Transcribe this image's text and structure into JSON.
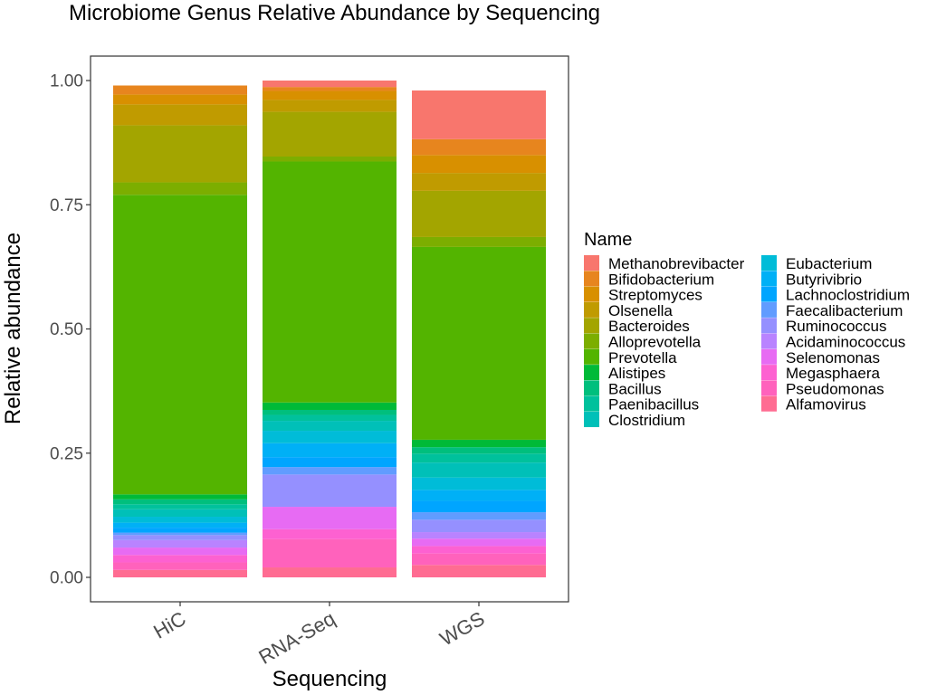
{
  "chart_data": {
    "type": "bar",
    "stacked": true,
    "title": "Microbiome Genus Relative Abundance by Sequencing",
    "xlabel": "Sequencing",
    "ylabel": "Relative abundance",
    "categories": [
      "HiC",
      "RNA-Seq",
      "WGS"
    ],
    "ylim": [
      0,
      1
    ],
    "yticks": [
      "0.00",
      "0.25",
      "0.50",
      "0.75",
      "1.00"
    ],
    "yticks_values": [
      0,
      0.25,
      0.5,
      0.75,
      1
    ],
    "grid": false,
    "legend": {
      "title": "Name",
      "position": "right",
      "columns": 2
    },
    "series": [
      {
        "name": "Methanobrevibacter",
        "color": "#F8766D",
        "values": [
          0.0,
          0.013,
          0.098
        ]
      },
      {
        "name": "Bifidobacterium",
        "color": "#E7851E",
        "values": [
          0.018,
          0.008,
          0.032
        ]
      },
      {
        "name": "Streptomyces",
        "color": "#D89000",
        "values": [
          0.02,
          0.018,
          0.036
        ]
      },
      {
        "name": "Olsenella",
        "color": "#C09B00",
        "values": [
          0.042,
          0.024,
          0.036
        ]
      },
      {
        "name": "Bacteroides",
        "color": "#A3A500",
        "values": [
          0.115,
          0.09,
          0.093
        ]
      },
      {
        "name": "Alloprevotella",
        "color": "#7CAE00",
        "values": [
          0.025,
          0.01,
          0.02
        ]
      },
      {
        "name": "Prevotella",
        "color": "#53B400",
        "values": [
          0.603,
          0.485,
          0.388
        ]
      },
      {
        "name": "Alistipes",
        "color": "#00BA38",
        "values": [
          0.01,
          0.015,
          0.015
        ]
      },
      {
        "name": "Bacillus",
        "color": "#00BF7D",
        "values": [
          0.01,
          0.01,
          0.013
        ]
      },
      {
        "name": "Paenibacillus",
        "color": "#00C19C",
        "values": [
          0.01,
          0.012,
          0.018
        ]
      },
      {
        "name": "Clostridium",
        "color": "#00C0B8",
        "values": [
          0.015,
          0.02,
          0.03
        ]
      },
      {
        "name": "Eubacterium",
        "color": "#00BCD8",
        "values": [
          0.012,
          0.025,
          0.025
        ]
      },
      {
        "name": "Butyrivibrio",
        "color": "#00B0F6",
        "values": [
          0.01,
          0.028,
          0.022
        ]
      },
      {
        "name": "Lachnoclostridium",
        "color": "#00A5FF",
        "values": [
          0.01,
          0.02,
          0.023
        ]
      },
      {
        "name": "Faecalibacterium",
        "color": "#619CFF",
        "values": [
          0.005,
          0.015,
          0.015
        ]
      },
      {
        "name": "Ruminococcus",
        "color": "#9590FF",
        "values": [
          0.01,
          0.065,
          0.025
        ]
      },
      {
        "name": "Acidaminococcus",
        "color": "#B983FF",
        "values": [
          0.015,
          0.0,
          0.013
        ]
      },
      {
        "name": "Selenomonas",
        "color": "#E76BF3",
        "values": [
          0.015,
          0.045,
          0.015
        ]
      },
      {
        "name": "Megasphaera",
        "color": "#FD61D1",
        "values": [
          0.015,
          0.02,
          0.015
        ]
      },
      {
        "name": "Pseudomonas",
        "color": "#FF62BC",
        "values": [
          0.015,
          0.057,
          0.023
        ]
      },
      {
        "name": "Alfamovirus",
        "color": "#FF6C92",
        "values": [
          0.015,
          0.02,
          0.025
        ]
      }
    ]
  }
}
